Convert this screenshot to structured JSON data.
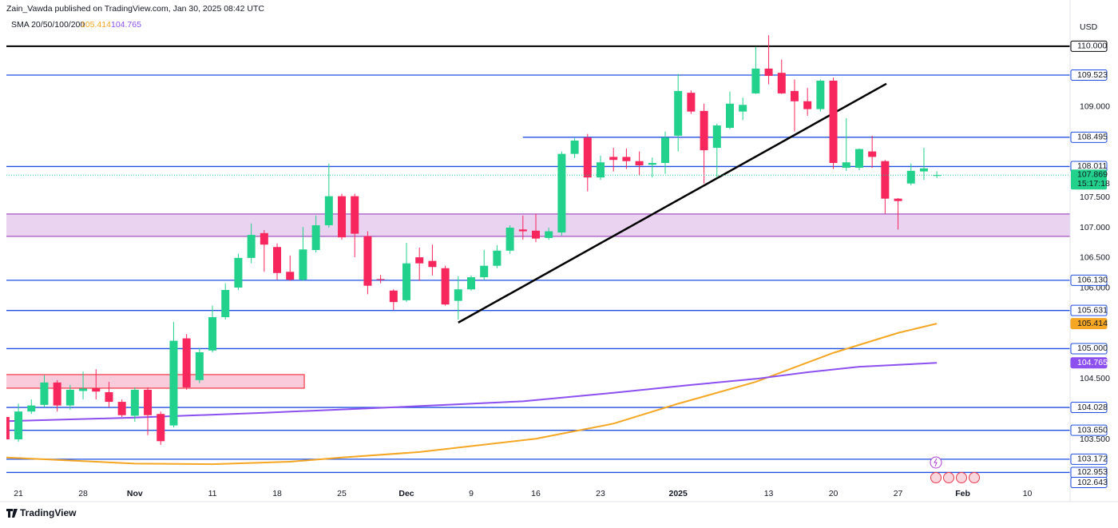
{
  "chart_data": {
    "type": "candlestick",
    "title": "Zain_Vawda published on TradingView.com, Jan 30, 2025 08:42 UTC",
    "indicator": "SMA 20/50/100/200",
    "currency": "USD",
    "countdown": "15:17:18",
    "brand": "TradingView",
    "up_color": "#22d18b",
    "down_color": "#f7265c",
    "open": [
      103.87,
      103.5,
      103.96,
      104.07,
      104.44,
      104.06,
      104.3,
      104.34,
      104.28,
      104.12,
      103.89,
      104.32,
      103.92,
      103.73,
      105.17,
      104.48,
      104.97,
      105.52,
      106.01,
      106.5,
      106.91,
      106.68,
      106.27,
      106.14,
      106.63,
      107.04,
      107.52,
      107.52,
      106.86,
      106.15,
      105.96,
      105.8,
      106.51,
      106.45,
      106.33,
      105.79,
      105.98,
      106.18,
      106.37,
      106.62,
      106.97,
      106.95,
      106.83,
      106.92,
      108.22,
      108.49,
      107.83,
      108.17,
      108.17,
      108.1,
      108.04,
      108.07,
      108.52,
      109.23,
      108.93,
      108.32,
      108.65,
      108.92,
      109.22,
      109.63,
      109.56,
      109.26,
      109.09,
      108.96,
      109.43,
      107.99,
      107.99,
      108.26,
      108.1,
      107.48,
      107.73,
      107.93,
      107.86
    ],
    "high": [
      103.9,
      104.09,
      104.16,
      104.56,
      104.48,
      104.4,
      104.62,
      104.66,
      104.45,
      104.16,
      104.36,
      104.36,
      103.96,
      105.44,
      105.24,
      105.01,
      105.71,
      106.08,
      106.57,
      107.07,
      106.96,
      106.74,
      106.54,
      107.01,
      107.2,
      108.06,
      107.56,
      107.56,
      106.94,
      106.22,
      105.98,
      106.75,
      106.67,
      106.72,
      106.37,
      106.2,
      106.21,
      106.63,
      106.71,
      107.04,
      107.2,
      107.23,
      107.0,
      108.26,
      108.48,
      108.55,
      108.19,
      108.32,
      108.31,
      108.26,
      108.16,
      108.59,
      109.54,
      109.27,
      109.05,
      108.72,
      109.25,
      109.15,
      109.99,
      110.18,
      109.78,
      109.45,
      109.31,
      109.45,
      109.48,
      108.81,
      108.31,
      108.52,
      108.12,
      107.49,
      108.06,
      108.32,
      107.93
    ],
    "low": [
      103.45,
      103.46,
      103.92,
      104.03,
      103.96,
      103.99,
      104.16,
      104.16,
      104.03,
      103.87,
      103.79,
      103.57,
      103.41,
      103.7,
      104.32,
      104.43,
      104.94,
      105.48,
      105.97,
      106.41,
      106.27,
      106.14,
      106.12,
      106.12,
      106.59,
      107.0,
      106.8,
      106.51,
      105.9,
      106.08,
      105.64,
      105.77,
      106.12,
      106.21,
      105.71,
      105.48,
      105.96,
      106.14,
      106.33,
      106.57,
      106.8,
      106.76,
      106.8,
      106.87,
      108.15,
      107.6,
      107.79,
      107.93,
      107.97,
      107.86,
      107.83,
      107.89,
      108.26,
      108.88,
      107.73,
      107.83,
      108.63,
      108.78,
      109.21,
      109.37,
      109.21,
      108.59,
      108.85,
      108.92,
      107.97,
      107.94,
      107.95,
      107.99,
      107.23,
      106.97,
      107.7,
      107.79,
      107.82
    ],
    "close": [
      103.5,
      103.96,
      104.06,
      104.44,
      104.06,
      104.32,
      104.34,
      104.29,
      104.12,
      103.9,
      104.32,
      103.9,
      103.47,
      105.13,
      104.36,
      104.94,
      105.52,
      105.97,
      106.5,
      106.88,
      106.72,
      106.25,
      106.14,
      106.64,
      107.04,
      107.52,
      106.84,
      106.9,
      106.04,
      106.14,
      105.77,
      106.41,
      106.41,
      106.35,
      105.73,
      105.98,
      106.18,
      106.37,
      106.62,
      107.0,
      106.94,
      106.82,
      106.94,
      108.22,
      108.44,
      107.83,
      108.08,
      108.12,
      108.1,
      108.03,
      108.07,
      108.49,
      109.26,
      108.92,
      108.28,
      108.69,
      109.05,
      109.03,
      109.63,
      109.51,
      109.22,
      109.09,
      108.96,
      109.43,
      108.07,
      108.08,
      108.3,
      108.17,
      107.48,
      107.44,
      107.94,
      107.98,
      107.869
    ],
    "series": [
      {
        "color": "#f5a623",
        "x": [
          0,
          10,
          16,
          22,
          26,
          32,
          41,
          47,
          52,
          58,
          64,
          69,
          72
        ],
        "values": [
          103.2,
          103.1,
          103.09,
          103.13,
          103.2,
          103.29,
          103.51,
          103.76,
          104.09,
          104.45,
          104.93,
          105.26,
          105.414
        ]
      },
      {
        "color": "#8c4ff0",
        "x": [
          0,
          10,
          20,
          30,
          40,
          47,
          53,
          58,
          62,
          66,
          72
        ],
        "values": [
          103.8,
          103.86,
          103.94,
          104.03,
          104.13,
          104.27,
          104.4,
          104.5,
          104.61,
          104.7,
          104.765
        ]
      }
    ],
    "levels": [
      {
        "value": 110,
        "label": "110.000",
        "color": "#000000"
      },
      {
        "value": 109.523,
        "color": "#1e4fe0"
      },
      {
        "value": 108.495,
        "color": "#1e4fe0",
        "x_start": 40
      },
      {
        "value": 108.011,
        "color": "#1e4fe0"
      },
      {
        "value": 106.13,
        "label": "106.130",
        "color": "#1e4fe0"
      },
      {
        "value": 105.631,
        "color": "#1e4fe0"
      },
      {
        "value": 105,
        "label": "105.000",
        "color": "#1e4fe0"
      },
      {
        "value": 104.028,
        "color": "#1e4fe0"
      },
      {
        "value": 103.65,
        "label": "103.650",
        "color": "#1e4fe0"
      },
      {
        "value": 103.172,
        "color": "#1e4fe0"
      },
      {
        "value": 102.953,
        "color": "#1e4fe0"
      },
      {
        "value": 102.643,
        "color": "#1e4fe0"
      }
    ],
    "zones": [
      {
        "from": 106.856,
        "to": 107.226,
        "fill": "#ead3f0",
        "border": "#a24cc0"
      },
      {
        "from": 104.346,
        "to": 104.571,
        "x_end": 23.1,
        "fill": "#f9cbdb",
        "border": "#f23645"
      }
    ],
    "trendline": {
      "x": [
        35,
        68.1
      ],
      "values": [
        105.43,
        109.38
      ],
      "color": "#000000"
    },
    "xlim": [
      0.07,
      82.3
    ],
    "ylim": [
      102.84,
      110.5
    ],
    "xticks": [
      {
        "value": 1,
        "label": "21"
      },
      {
        "value": 6,
        "label": "28"
      },
      {
        "value": 10,
        "label": "Nov"
      },
      {
        "value": 16,
        "label": "11"
      },
      {
        "value": 21,
        "label": "18"
      },
      {
        "value": 26,
        "label": "25"
      },
      {
        "value": 31,
        "label": "Dec"
      },
      {
        "value": 36,
        "label": "9"
      },
      {
        "value": 41,
        "label": "16"
      },
      {
        "value": 46,
        "label": "23"
      },
      {
        "value": 52,
        "label": "2025"
      },
      {
        "value": 59,
        "label": "13"
      },
      {
        "value": 64,
        "label": "20"
      },
      {
        "value": 69,
        "label": "27"
      },
      {
        "value": 74,
        "label": "Feb"
      },
      {
        "value": 79,
        "label": "10"
      }
    ],
    "yticks": [
      {
        "value": 109,
        "label": "109.000"
      },
      {
        "value": 107.5,
        "label": "107.500"
      },
      {
        "value": 107,
        "label": "107.000"
      },
      {
        "value": 106.5,
        "label": "106.500"
      },
      {
        "value": 106,
        "label": "106.000"
      },
      {
        "value": 104.5,
        "label": "104.500"
      },
      {
        "value": 103.5,
        "label": "103.500"
      }
    ]
  }
}
